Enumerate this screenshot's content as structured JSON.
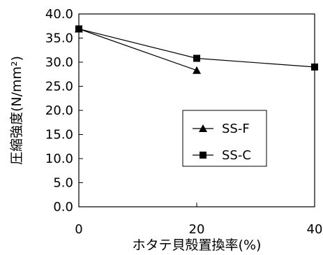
{
  "chart_data": {
    "type": "line",
    "xlabel": "ホタテ貝殻置換率(%)",
    "ylabel": "圧縮強度(N/mm²)",
    "xlim": [
      0,
      40
    ],
    "ylim": [
      0,
      40
    ],
    "x_ticks": [
      "0",
      "20",
      "40"
    ],
    "y_ticks": [
      "0.0",
      "5.0",
      "10.0",
      "15.0",
      "20.0",
      "25.0",
      "30.0",
      "35.0",
      "40.0"
    ],
    "grid": false,
    "legend_position": "center-right",
    "series": [
      {
        "name": "SS-F",
        "marker": "triangle",
        "x": [
          0,
          20
        ],
        "y": [
          36.9,
          28.3
        ]
      },
      {
        "name": "SS-C",
        "marker": "square",
        "x": [
          0,
          20,
          40
        ],
        "y": [
          36.9,
          30.8,
          29.0
        ]
      }
    ]
  }
}
